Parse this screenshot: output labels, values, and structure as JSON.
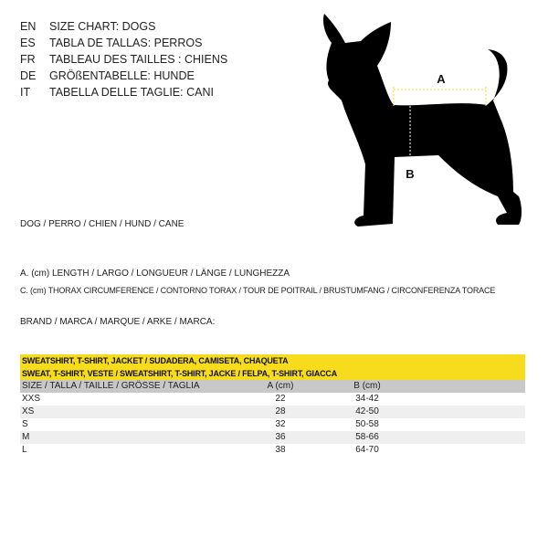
{
  "languages": [
    {
      "code": "EN",
      "title": "SIZE CHART: DOGS"
    },
    {
      "code": "ES",
      "title": "TABLA DE TALLAS: PERROS"
    },
    {
      "code": "FR",
      "title": "TABLEAU DES TAILLES : CHIENS"
    },
    {
      "code": "DE",
      "title": "GRÖßENTABELLE: HUNDE"
    },
    {
      "code": "IT",
      "title": "TABELLA DELLE TAGLIE: CANI"
    }
  ],
  "dog_label": "DOG / PERRO / CHIEN / HUND / CANE",
  "measure_a": "A. (cm) LENGTH / LARGO / LONGUEUR / LÄNGE / LUNGHEZZA",
  "measure_b": "C. (cm) THORAX CIRCUMFERENCE / CONTORNO TORAX / TOUR DE POITRAIL / BRUSTUMFANG / CIRCONFERENZA TORACE",
  "brand_label": "BRAND / MARCA / MARQUE / ARKE / MARCA:",
  "diagram": {
    "label_a": "A",
    "label_b": "B",
    "accent": "#f7dc1e"
  },
  "table": {
    "title_1": "SWEATSHIRT, T-SHIRT, JACKET / SUDADERA, CAMISETA, CHAQUETA",
    "title_2": "SWEAT, T-SHIRT, VESTE / SWEATSHIRT, T-SHIRT, JACKE / FELPA, T-SHIRT, GIACCA",
    "headers": [
      "SIZE / TALLA / TAILLE / GRÖSSE / TAGLIA",
      "A (cm)",
      "B (cm)"
    ],
    "rows": [
      [
        "XXS",
        "22",
        "34-42"
      ],
      [
        "XS",
        "28",
        "42-50"
      ],
      [
        "S",
        "32",
        "50-58"
      ],
      [
        "M",
        "36",
        "58-66"
      ],
      [
        "L",
        "38",
        "64-70"
      ]
    ]
  }
}
